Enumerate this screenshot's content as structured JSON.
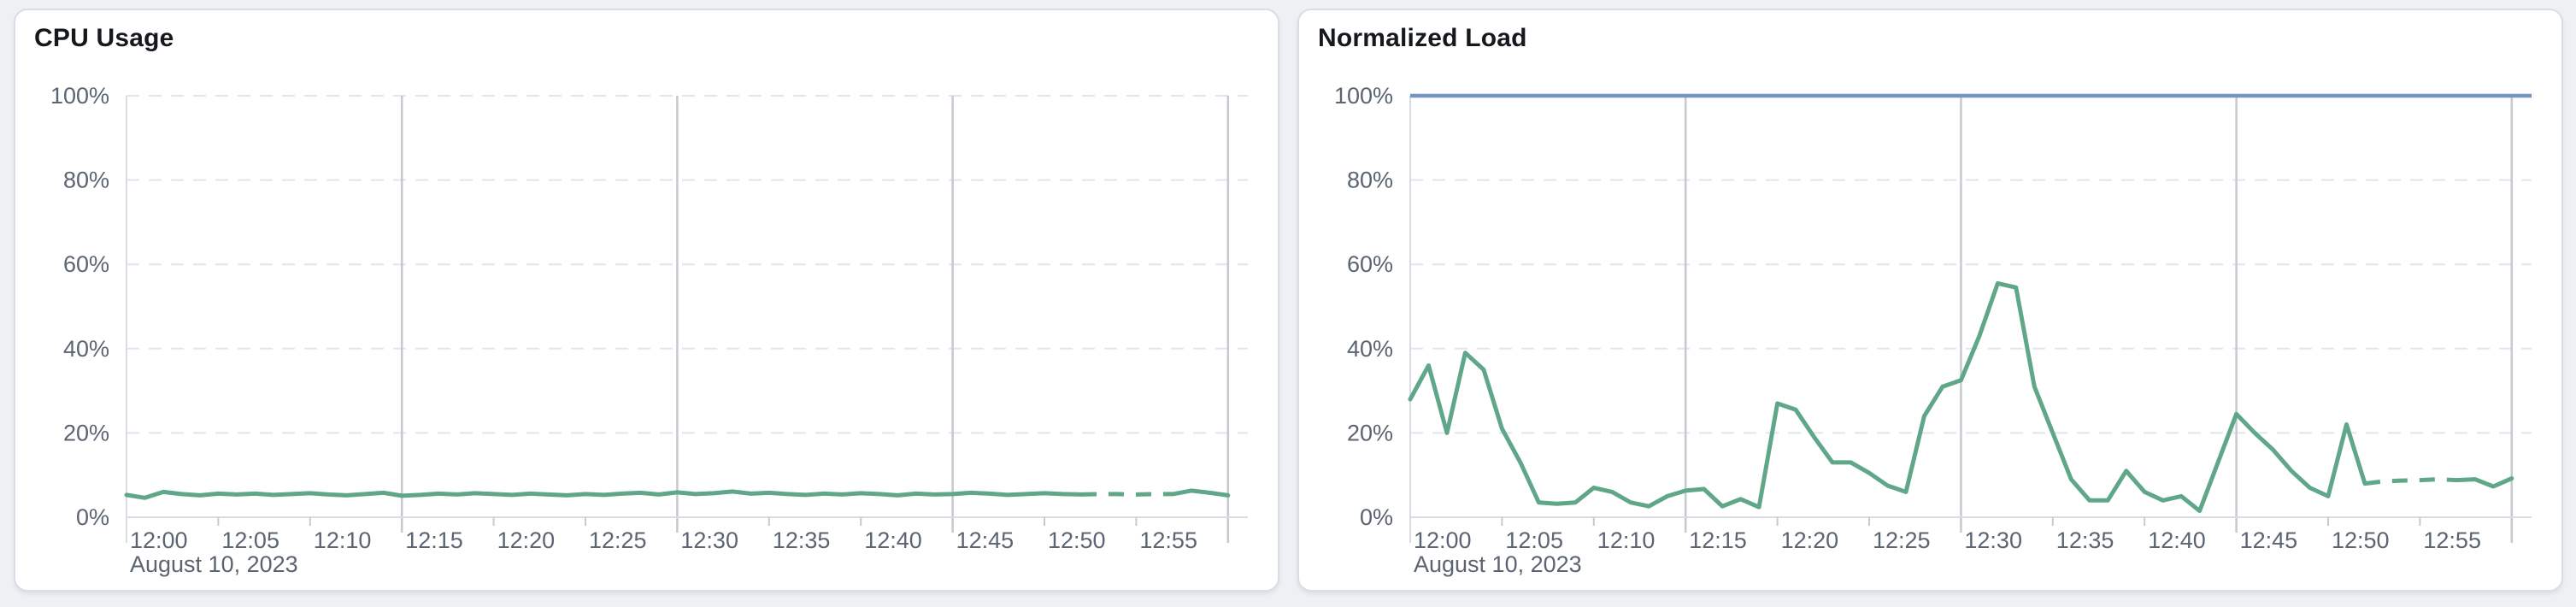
{
  "colors": {
    "page_bg": "#eef0f4",
    "card_bg": "#ffffff",
    "card_border": "#d8dde6",
    "title_text": "#15181d",
    "tick_text": "#5b6473",
    "grid_dashed": "#e2e5ee",
    "grid_vertical": "#c6c9d0",
    "axis": "#d9dce3",
    "series_green": "#60a789",
    "limit_blue": "#7594c3"
  },
  "chart_data": [
    {
      "type": "line",
      "title": "CPU Usage",
      "ylabel": "",
      "ylim": [
        0,
        100
      ],
      "y_tick_values": [
        0,
        20,
        40,
        60,
        80,
        100
      ],
      "y_tick_labels": [
        "0%",
        "20%",
        "40%",
        "60%",
        "80%",
        "100%"
      ],
      "x_range_minutes": [
        0,
        60
      ],
      "x_tick_minutes": [
        0,
        5,
        10,
        15,
        20,
        25,
        30,
        35,
        40,
        45,
        50,
        55
      ],
      "x_tick_labels": [
        "12:00",
        "12:05",
        "12:10",
        "12:15",
        "12:20",
        "12:25",
        "12:30",
        "12:35",
        "12:40",
        "12:45",
        "12:50",
        "12:55"
      ],
      "x_major_gridline_minutes": [
        15,
        30,
        45,
        60
      ],
      "x_date_label": "August 10, 2023",
      "grid": {
        "horizontal_dashed": true,
        "vertical_solid_every_minutes": 15
      },
      "legend": "none",
      "series": [
        {
          "name": "cpu-usage",
          "color": "#60a789",
          "x_start_minute": 0,
          "x_step_minutes": 1,
          "values": [
            5.3,
            4.6,
            6.0,
            5.5,
            5.2,
            5.6,
            5.4,
            5.6,
            5.3,
            5.5,
            5.7,
            5.4,
            5.2,
            5.5,
            5.8,
            5.1,
            5.3,
            5.6,
            5.4,
            5.7,
            5.5,
            5.3,
            5.6,
            5.4,
            5.2,
            5.5,
            5.3,
            5.6,
            5.8,
            5.4,
            5.9,
            5.5,
            5.7,
            6.1,
            5.6,
            5.8,
            5.5,
            5.3,
            5.6,
            5.4,
            5.7,
            5.5,
            5.2,
            5.6,
            5.4,
            5.5,
            5.8,
            5.6,
            5.3,
            5.5,
            5.7,
            5.5,
            5.4,
            5.5,
            5.5,
            5.4,
            5.5,
            5.5,
            6.3,
            5.8,
            5.2
          ],
          "dash_segments": [
            {
              "from_minute": 52,
              "to_minute": 57
            }
          ]
        }
      ],
      "reference_lines": []
    },
    {
      "type": "line",
      "title": "Normalized Load",
      "ylabel": "",
      "ylim": [
        0,
        100
      ],
      "y_tick_values": [
        0,
        20,
        40,
        60,
        80,
        100
      ],
      "y_tick_labels": [
        "0%",
        "20%",
        "40%",
        "60%",
        "80%",
        "100%"
      ],
      "x_range_minutes": [
        0,
        60
      ],
      "x_tick_minutes": [
        0,
        5,
        10,
        15,
        20,
        25,
        30,
        35,
        40,
        45,
        50,
        55
      ],
      "x_tick_labels": [
        "12:00",
        "12:05",
        "12:10",
        "12:15",
        "12:20",
        "12:25",
        "12:30",
        "12:35",
        "12:40",
        "12:45",
        "12:50",
        "12:55"
      ],
      "x_major_gridline_minutes": [
        15,
        30,
        45,
        60
      ],
      "x_date_label": "August 10, 2023",
      "grid": {
        "horizontal_dashed": true,
        "vertical_solid_every_minutes": 15
      },
      "legend": "none",
      "series": [
        {
          "name": "normalized-load",
          "color": "#60a789",
          "x_start_minute": 0,
          "x_step_minutes": 1,
          "values": [
            28,
            36,
            20,
            39,
            35,
            21,
            13,
            3.5,
            3.2,
            3.5,
            7,
            6,
            3.5,
            2.6,
            5,
            6.3,
            6.7,
            2.6,
            4.3,
            2.4,
            27,
            25.5,
            19,
            13,
            13,
            10.5,
            7.5,
            6,
            24,
            31,
            32.5,
            43,
            55.5,
            54.5,
            31,
            20,
            9,
            4,
            4,
            11,
            6,
            4,
            5,
            1.5,
            13,
            24.5,
            20,
            16,
            11,
            7,
            5,
            22,
            8,
            8.5,
            8.7,
            8.8,
            9,
            8.8,
            9,
            7.3,
            9.2
          ],
          "dash_segments": [
            {
              "from_minute": 52,
              "to_minute": 57
            }
          ]
        }
      ],
      "reference_lines": [
        {
          "name": "limit-100",
          "value": 100,
          "color": "#7594c3",
          "style": "solid"
        }
      ]
    }
  ]
}
